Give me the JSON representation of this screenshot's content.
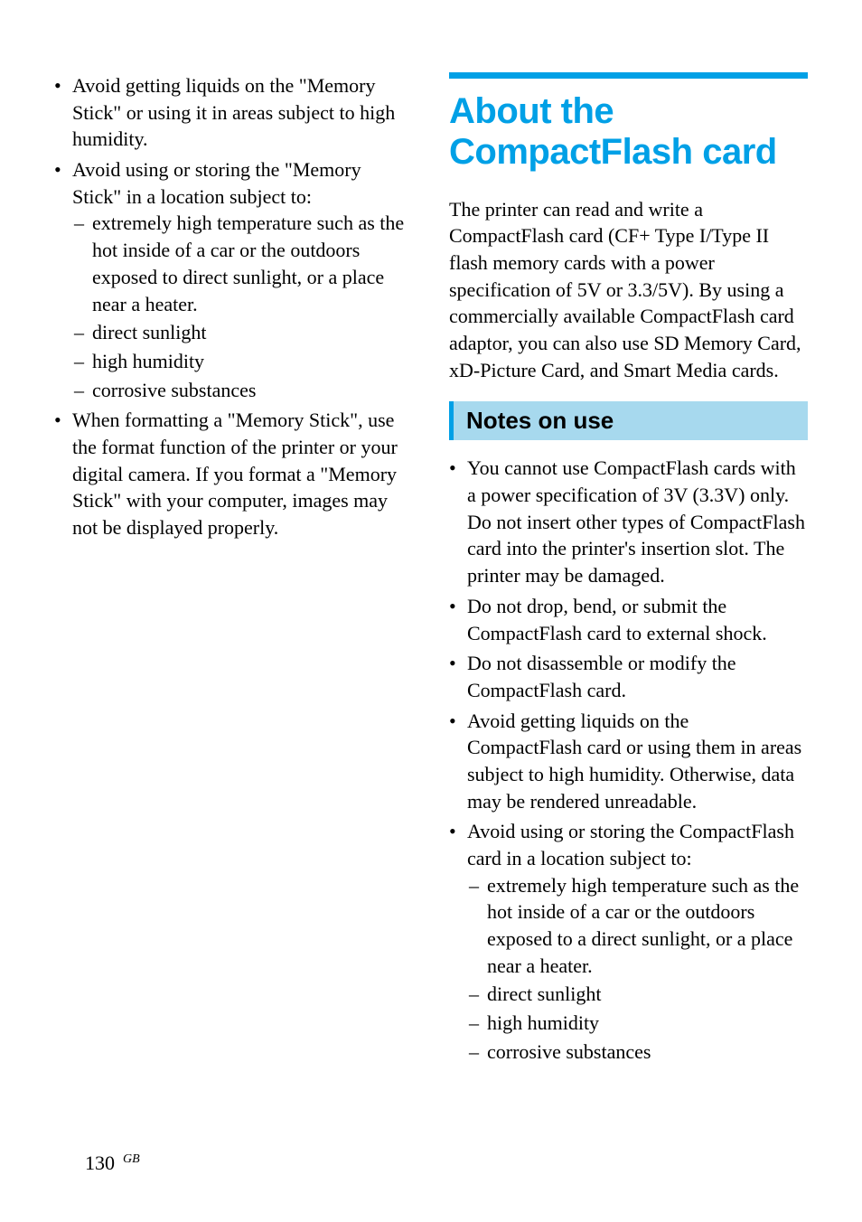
{
  "colors": {
    "accent": "#00a0e6",
    "sub_head_bg": "#a7d9ee",
    "page_bg": "#ffffff",
    "text": "#000000"
  },
  "typography": {
    "body_family": "Times New Roman",
    "body_size_pt": 16,
    "h1_family": "Arial Black",
    "h1_size_pt": 30,
    "h2_family": "Arial",
    "h2_size_pt": 20
  },
  "left": {
    "bullets": [
      {
        "text": "Avoid getting liquids on the \"Memory Stick\" or using it in areas subject to high humidity."
      },
      {
        "text": "Avoid using or storing the \"Memory Stick\" in a location subject to:",
        "sub": [
          "extremely high temperature such as the hot inside of a car or the outdoors exposed to direct sunlight, or a place near a heater.",
          "direct sunlight",
          "high humidity",
          "corrosive substances"
        ]
      },
      {
        "text": "When formatting a \"Memory Stick\", use the format function of the printer or your digital camera. If you format a \"Memory Stick\" with your computer, images may not be displayed properly."
      }
    ]
  },
  "right": {
    "title": "About the CompactFlash card",
    "intro": "The printer can read and write a CompactFlash card (CF+ Type I/Type II flash memory cards with a power specification of 5V or 3.3/5V).  By using a commercially available CompactFlash card adaptor, you can also use SD Memory Card, xD-Picture Card, and Smart Media cards.",
    "sub_head": "Notes on use",
    "bullets": [
      {
        "text": "You cannot use CompactFlash cards with a power specification of 3V (3.3V) only.  Do not insert other types of CompactFlash card into the printer's insertion slot.  The printer may be damaged."
      },
      {
        "text": "Do not drop, bend, or submit the CompactFlash card to external shock."
      },
      {
        "text": "Do not disassemble or modify the CompactFlash card."
      },
      {
        "text": "Avoid getting liquids on the CompactFlash card or using them in areas subject to high humidity. Otherwise, data may be rendered unreadable."
      },
      {
        "text": "Avoid using or storing the CompactFlash card in a location subject to:",
        "sub": [
          "extremely high temperature such as the hot inside of a car or the outdoors exposed to a direct sunlight, or a place near a heater.",
          "direct sunlight",
          "high humidity",
          "corrosive substances"
        ]
      }
    ]
  },
  "footer": {
    "page_number": "130",
    "lang": "GB"
  }
}
